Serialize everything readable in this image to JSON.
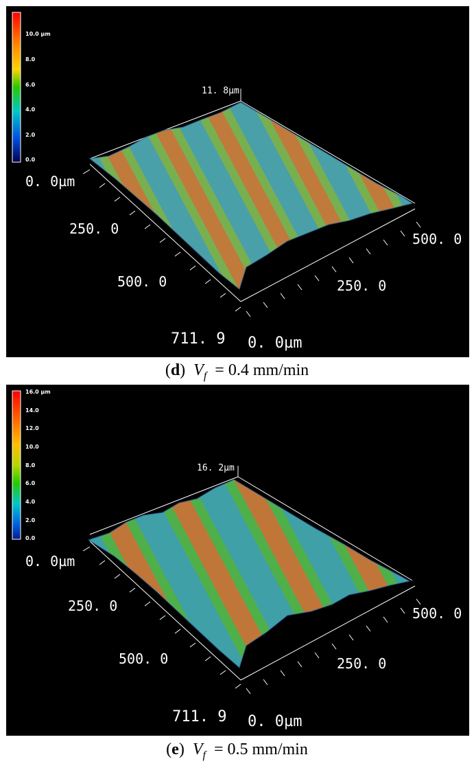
{
  "panels": [
    {
      "id": "d",
      "colorbar": {
        "max_label": "10.0 µm",
        "ticks": [
          "8.0",
          "6.0",
          "4.0",
          "2.0",
          "0.0"
        ]
      },
      "peak_label": "11. 8µm",
      "axis": {
        "left_origin": "0. 0µm",
        "left_tick_1": "250. 0",
        "left_tick_2": "500. 0",
        "left_end": "711. 9",
        "right_origin": "0. 0µm",
        "right_tick_1": "250. 0",
        "right_end": "500. 0"
      },
      "caption": {
        "letter": "d",
        "var": "V",
        "sub": "f",
        "text": " = 0.4 mm/min"
      }
    },
    {
      "id": "e",
      "colorbar": {
        "max_label": "16.0 µm",
        "ticks": [
          "14.0",
          "12.0",
          "10.0",
          "8.0",
          "6.0",
          "4.0",
          "2.0",
          "0.0"
        ]
      },
      "peak_label": "16. 2µm",
      "axis": {
        "left_origin": "0. 0µm",
        "left_tick_1": "250. 0",
        "left_tick_2": "500. 0",
        "left_end": "711. 9",
        "right_origin": "0. 0µm",
        "right_tick_1": "250. 0",
        "right_end": "500. 0"
      },
      "caption": {
        "letter": "e",
        "var": "V",
        "sub": "f",
        "text": " = 0.5 mm/min"
      }
    }
  ]
}
